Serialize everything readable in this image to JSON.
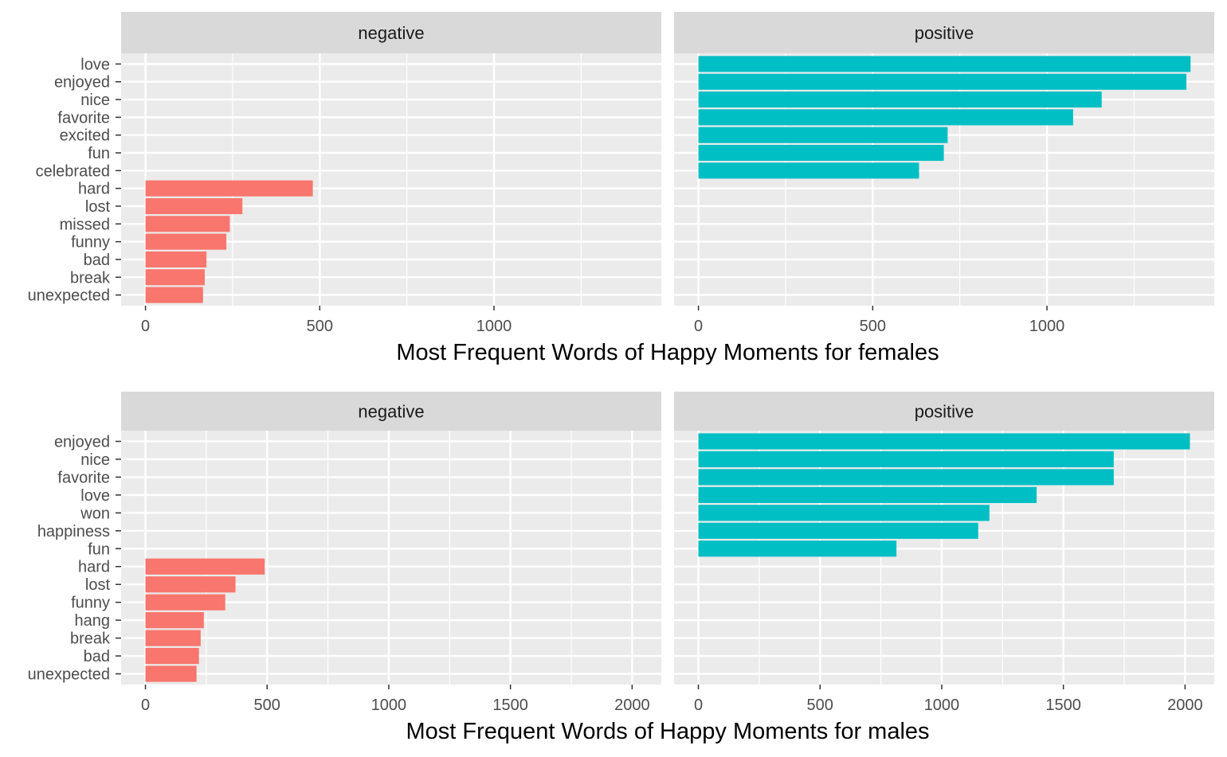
{
  "colors": {
    "negative": "#f8766d",
    "positive": "#00bfc4",
    "panel_background": "#ebebeb",
    "strip_background": "#d9d9d9",
    "grid": "#ffffff"
  },
  "chart_data": [
    {
      "type": "bar",
      "orientation": "horizontal",
      "xlabel": "Most Frequent Words of Happy Moments for females",
      "xticks": [
        0,
        500,
        1000
      ],
      "xlim": [
        -70,
        1480
      ],
      "facets": [
        {
          "name": "negative",
          "categories": [
            "love",
            "enjoyed",
            "nice",
            "favorite",
            "excited",
            "fun",
            "celebrated",
            "hard",
            "lost",
            "missed",
            "funny",
            "bad",
            "break",
            "unexpected"
          ],
          "values": [
            null,
            null,
            null,
            null,
            null,
            null,
            null,
            480,
            278,
            242,
            232,
            175,
            170,
            165
          ]
        },
        {
          "name": "positive",
          "categories": [
            "love",
            "enjoyed",
            "nice",
            "favorite",
            "excited",
            "fun",
            "celebrated",
            "hard",
            "lost",
            "missed",
            "funny",
            "bad",
            "break",
            "unexpected"
          ],
          "values": [
            1412,
            1400,
            1157,
            1075,
            715,
            704,
            633,
            null,
            null,
            null,
            null,
            null,
            null,
            null
          ]
        }
      ]
    },
    {
      "type": "bar",
      "orientation": "horizontal",
      "xlabel": "Most Frequent Words of Happy Moments for males",
      "xticks": [
        0,
        500,
        1000,
        1500,
        2000
      ],
      "xlim": [
        -100,
        2120
      ],
      "facets": [
        {
          "name": "negative",
          "categories": [
            "enjoyed",
            "nice",
            "favorite",
            "love",
            "won",
            "happiness",
            "fun",
            "hard",
            "lost",
            "funny",
            "hang",
            "break",
            "bad",
            "unexpected"
          ],
          "values": [
            null,
            null,
            null,
            null,
            null,
            null,
            null,
            490,
            370,
            328,
            240,
            227,
            220,
            210
          ]
        },
        {
          "name": "positive",
          "categories": [
            "enjoyed",
            "nice",
            "favorite",
            "love",
            "won",
            "happiness",
            "fun",
            "hard",
            "lost",
            "funny",
            "hang",
            "break",
            "bad",
            "unexpected"
          ],
          "values": [
            2020,
            1707,
            1707,
            1390,
            1196,
            1150,
            814,
            null,
            null,
            null,
            null,
            null,
            null,
            null
          ]
        }
      ]
    }
  ]
}
